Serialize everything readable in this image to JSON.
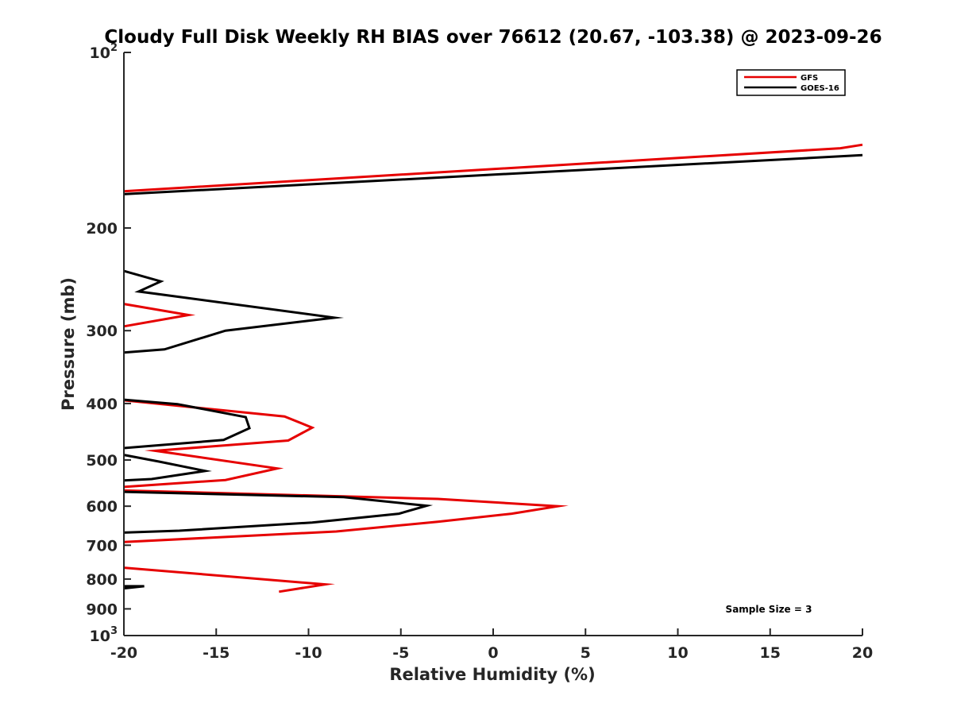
{
  "chart_data": {
    "type": "line",
    "title": "Cloudy Full Disk Weekly RH BIAS over 76612 (20.67, -103.38) @ 2023-09-26",
    "xlabel": "Relative Humidity (%)",
    "ylabel": "Pressure (mb)",
    "xlim": [
      -20,
      20
    ],
    "ylim": [
      100,
      1000
    ],
    "yscale": "log",
    "y_reversed": true,
    "grid": false,
    "legend_position": "top-right",
    "x_ticks": [
      {
        "value": -20,
        "label": "-20"
      },
      {
        "value": -15,
        "label": "-15"
      },
      {
        "value": -10,
        "label": "-10"
      },
      {
        "value": -5,
        "label": "-5"
      },
      {
        "value": 0,
        "label": "0"
      },
      {
        "value": 5,
        "label": "5"
      },
      {
        "value": 10,
        "label": "10"
      },
      {
        "value": 15,
        "label": "15"
      },
      {
        "value": 20,
        "label": "20"
      }
    ],
    "y_ticks": [
      {
        "value": 100,
        "base": "10",
        "exp": "2"
      },
      {
        "value": 200,
        "label": "200"
      },
      {
        "value": 300,
        "label": "300"
      },
      {
        "value": 400,
        "label": "400"
      },
      {
        "value": 500,
        "label": "500"
      },
      {
        "value": 600,
        "label": "600"
      },
      {
        "value": 700,
        "label": "700"
      },
      {
        "value": 800,
        "label": "800"
      },
      {
        "value": 900,
        "label": "900"
      },
      {
        "value": 1000,
        "base": "10",
        "exp": "3"
      }
    ],
    "series": [
      {
        "name": "GFS",
        "color": "#e60000",
        "segments": [
          [
            [
              20,
              144
            ],
            [
              18.8,
              146
            ],
            [
              -20,
              173
            ]
          ],
          [
            [
              -20,
              270
            ],
            [
              -16.5,
              282
            ],
            [
              -20,
              295
            ]
          ],
          [
            [
              -20,
              395
            ],
            [
              -11.3,
              421
            ],
            [
              -9.8,
              440
            ],
            [
              -11.1,
              463
            ],
            [
              -18.3,
              482
            ],
            [
              -11.7,
              517
            ],
            [
              -14.5,
              541
            ],
            [
              -20,
              556
            ]
          ],
          [
            [
              -20,
              564
            ],
            [
              -3,
              583
            ],
            [
              3.5,
              600
            ],
            [
              1,
              618
            ],
            [
              -3,
              638
            ],
            [
              -8.5,
              663
            ],
            [
              -20,
              691
            ]
          ],
          [
            [
              -20,
              765
            ],
            [
              -9.1,
              817
            ],
            [
              -11.6,
              841
            ]
          ]
        ]
      },
      {
        "name": "GOES-16",
        "color": "#000000",
        "segments": [
          [
            [
              20,
              150
            ],
            [
              -20,
              175
            ]
          ],
          [
            [
              -20,
              237
            ],
            [
              -18,
              247
            ],
            [
              -19.2,
              257
            ],
            [
              -8.6,
              285
            ],
            [
              -14.5,
              300
            ],
            [
              -17.8,
              323
            ],
            [
              -20,
              327
            ]
          ],
          [
            [
              -20,
              394
            ],
            [
              -17.1,
              401
            ],
            [
              -13.4,
              422
            ],
            [
              -13.2,
              441
            ],
            [
              -14.6,
              462
            ],
            [
              -20,
              477
            ]
          ],
          [
            [
              -20,
              490
            ],
            [
              -18.1,
              503
            ],
            [
              -15.6,
              522
            ],
            [
              -18.5,
              539
            ],
            [
              -20,
              542
            ]
          ],
          [
            [
              -20,
              567
            ],
            [
              -8.1,
              579
            ],
            [
              -3.6,
              599
            ],
            [
              -5.1,
              618
            ],
            [
              -9.8,
              640
            ],
            [
              -17,
              661
            ],
            [
              -20,
              666
            ]
          ],
          [
            [
              -20,
              823
            ],
            [
              -18.9,
              823
            ],
            [
              -20,
              830
            ]
          ]
        ]
      }
    ],
    "legend": [
      "GFS",
      "GOES-16"
    ],
    "annotations": [
      "Sample Size = 3"
    ]
  }
}
